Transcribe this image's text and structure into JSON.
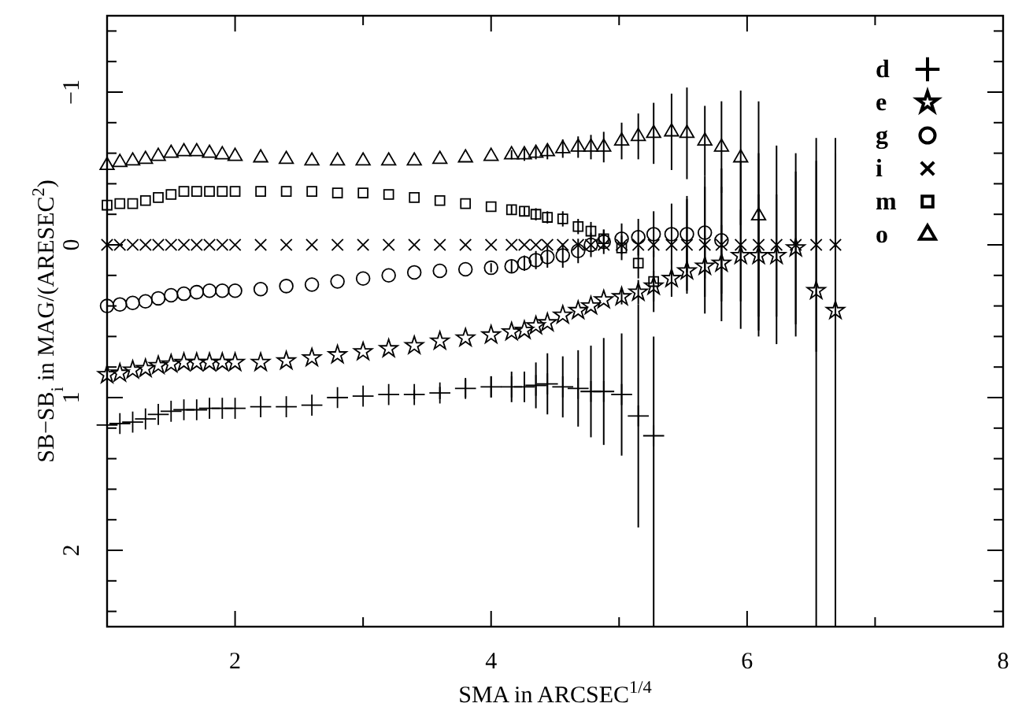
{
  "chart_data": {
    "type": "scatter",
    "xlabel": "SMA in ARCSEC$^{1/4}$",
    "ylabel": "SB−SB$_{i}$ in MAG/(ARESEC$^{2}$)",
    "xlim": [
      1,
      8
    ],
    "ylim": [
      2.5,
      -1.5
    ],
    "xticks": [
      2,
      {
        "value": 3,
        "label": null
      },
      4,
      {
        "value": 5,
        "label": null
      },
      6,
      {
        "value": 7,
        "label": null
      },
      8
    ],
    "yticks": [
      {
        "value": -1.4,
        "label": null
      },
      {
        "value": -1.2,
        "label": null
      },
      {
        "value": -1,
        "label": "−1"
      },
      {
        "value": -0.8,
        "label": null
      },
      {
        "value": -0.6,
        "label": null
      },
      {
        "value": -0.4,
        "label": null
      },
      {
        "value": -0.2,
        "label": null
      },
      0,
      {
        "value": 0.2,
        "label": null
      },
      {
        "value": 0.4,
        "label": null
      },
      {
        "value": 0.6,
        "label": null
      },
      {
        "value": 0.8,
        "label": null
      },
      1,
      {
        "value": 1.2,
        "label": null
      },
      {
        "value": 1.4,
        "label": null
      },
      {
        "value": 1.6,
        "label": null
      },
      {
        "value": 1.8,
        "label": null
      },
      2,
      {
        "value": 2.2,
        "label": null
      },
      {
        "value": 2.4,
        "label": null
      }
    ],
    "grid": false,
    "legend": "top right",
    "series": [
      {
        "name": "d",
        "color": "#000000",
        "marker": "plus",
        "x": [
          1.0,
          1.1,
          1.2,
          1.3,
          1.4,
          1.5,
          1.6,
          1.7,
          1.8,
          1.9,
          2.0,
          2.2,
          2.4,
          2.6,
          2.8,
          3.0,
          3.2,
          3.4,
          3.6,
          3.8,
          4.0,
          4.16,
          4.26,
          4.35,
          4.44,
          4.56,
          4.68,
          4.78,
          4.88,
          5.02,
          5.15,
          5.27
        ],
        "values": [
          1.18,
          1.17,
          1.16,
          1.14,
          1.11,
          1.09,
          1.08,
          1.08,
          1.07,
          1.07,
          1.07,
          1.06,
          1.06,
          1.05,
          1.0,
          0.99,
          0.98,
          0.98,
          0.97,
          0.94,
          0.93,
          0.93,
          0.93,
          0.92,
          0.91,
          0.93,
          0.94,
          0.96,
          0.96,
          0.98,
          1.12,
          1.25
        ],
        "errors": [
          null,
          null,
          null,
          null,
          null,
          null,
          null,
          null,
          null,
          null,
          null,
          null,
          null,
          null,
          null,
          null,
          null,
          0.03,
          0.04,
          0.06,
          0.07,
          0.1,
          0.1,
          0.15,
          0.2,
          0.2,
          0.25,
          0.3,
          0.35,
          0.4,
          0.73,
          [
            0.6,
            2.5
          ]
        ]
      },
      {
        "name": "e",
        "color": "#000000",
        "marker": "star",
        "x": [
          1.0,
          1.1,
          1.2,
          1.3,
          1.4,
          1.5,
          1.6,
          1.7,
          1.8,
          1.9,
          2.0,
          2.2,
          2.4,
          2.6,
          2.8,
          3.0,
          3.2,
          3.4,
          3.6,
          3.8,
          4.0,
          4.16,
          4.26,
          4.35,
          4.44,
          4.56,
          4.68,
          4.78,
          4.88,
          5.02,
          5.15,
          5.27,
          5.41,
          5.53,
          5.67,
          5.8,
          5.95,
          6.09,
          6.23,
          6.38,
          6.54,
          6.69
        ],
        "values": [
          0.85,
          0.84,
          0.82,
          0.81,
          0.79,
          0.78,
          0.77,
          0.77,
          0.77,
          0.77,
          0.77,
          0.77,
          0.76,
          0.74,
          0.72,
          0.7,
          0.68,
          0.66,
          0.63,
          0.61,
          0.59,
          0.57,
          0.56,
          0.53,
          0.51,
          0.46,
          0.43,
          0.4,
          0.36,
          0.34,
          0.31,
          0.27,
          0.22,
          0.17,
          0.14,
          0.12,
          0.07,
          0.07,
          0.07,
          0.02,
          0.3,
          0.43
        ],
        "errors": [
          null,
          null,
          null,
          null,
          null,
          null,
          null,
          null,
          null,
          null,
          null,
          null,
          null,
          null,
          null,
          null,
          null,
          null,
          null,
          null,
          null,
          null,
          null,
          null,
          null,
          null,
          null,
          null,
          null,
          0.05,
          0.08,
          0.1,
          0.12,
          0.15,
          0.2,
          0.25,
          0.3,
          0.4,
          0.4,
          0.5,
          [
            -0.55,
            2.5
          ],
          [
            -0.6,
            2.5
          ]
        ]
      },
      {
        "name": "g",
        "color": "#000000",
        "marker": "circle",
        "x": [
          1.0,
          1.1,
          1.2,
          1.3,
          1.4,
          1.5,
          1.6,
          1.7,
          1.8,
          1.9,
          2.0,
          2.2,
          2.4,
          2.6,
          2.8,
          3.0,
          3.2,
          3.4,
          3.6,
          3.8,
          4.0,
          4.16,
          4.26,
          4.35,
          4.44,
          4.56,
          4.68,
          4.78,
          4.88,
          5.02,
          5.15,
          5.27,
          5.41,
          5.53,
          5.67,
          5.8
        ],
        "values": [
          0.4,
          0.39,
          0.38,
          0.37,
          0.35,
          0.33,
          0.32,
          0.31,
          0.3,
          0.3,
          0.3,
          0.29,
          0.27,
          0.26,
          0.24,
          0.22,
          0.2,
          0.18,
          0.17,
          0.16,
          0.15,
          0.14,
          0.12,
          0.1,
          0.08,
          0.07,
          0.04,
          0.0,
          -0.02,
          -0.04,
          -0.05,
          -0.07,
          -0.07,
          -0.07,
          -0.08,
          -0.03
        ],
        "errors": [
          null,
          null,
          null,
          null,
          null,
          null,
          null,
          null,
          null,
          null,
          null,
          null,
          null,
          null,
          null,
          null,
          null,
          null,
          null,
          null,
          0.03,
          0.04,
          0.05,
          0.06,
          0.07,
          0.08,
          0.08,
          0.08,
          0.08,
          0.1,
          0.12,
          0.15,
          0.2,
          0.25,
          0.3,
          0.35
        ]
      },
      {
        "name": "i",
        "color": "#000000",
        "marker": "cross",
        "x": [
          1.0,
          1.1,
          1.2,
          1.3,
          1.4,
          1.5,
          1.6,
          1.7,
          1.8,
          1.9,
          2.0,
          2.2,
          2.4,
          2.6,
          2.8,
          3.0,
          3.2,
          3.4,
          3.6,
          3.8,
          4.0,
          4.16,
          4.26,
          4.35,
          4.44,
          4.56,
          4.68,
          4.78,
          4.88,
          5.02,
          5.15,
          5.27,
          5.41,
          5.53,
          5.67,
          5.8,
          5.95,
          6.09,
          6.23,
          6.38,
          6.54,
          6.69
        ],
        "values": [
          0,
          0,
          0,
          0,
          0,
          0,
          0,
          0,
          0,
          0,
          0,
          0,
          0,
          0,
          0,
          0,
          0,
          0,
          0,
          0,
          0,
          0,
          0,
          0,
          0,
          0,
          0,
          0,
          0,
          0,
          0,
          0,
          0,
          0,
          0,
          0,
          0,
          0,
          0,
          0,
          0,
          0
        ],
        "errors": [
          null,
          null,
          null,
          null,
          null,
          null,
          null,
          null,
          null,
          null,
          null,
          null,
          null,
          null,
          null,
          null,
          null,
          null,
          null,
          null,
          null,
          null,
          null,
          null,
          null,
          null,
          null,
          null,
          null,
          null,
          null,
          null,
          null,
          0.3,
          0.45,
          0.5,
          0.55,
          0.6,
          0.65,
          0.6,
          0.7,
          0.7
        ]
      },
      {
        "name": "m",
        "color": "#000000",
        "marker": "square",
        "x": [
          1.0,
          1.1,
          1.2,
          1.3,
          1.4,
          1.5,
          1.6,
          1.7,
          1.8,
          1.9,
          2.0,
          2.2,
          2.4,
          2.6,
          2.8,
          3.0,
          3.2,
          3.4,
          3.6,
          3.8,
          4.0,
          4.16,
          4.26,
          4.35,
          4.44,
          4.56,
          4.68,
          4.78,
          4.88,
          5.02,
          5.15,
          5.27
        ],
        "values": [
          -0.26,
          -0.27,
          -0.27,
          -0.29,
          -0.31,
          -0.33,
          -0.35,
          -0.35,
          -0.35,
          -0.35,
          -0.35,
          -0.35,
          -0.35,
          -0.35,
          -0.34,
          -0.34,
          -0.33,
          -0.31,
          -0.29,
          -0.27,
          -0.25,
          -0.23,
          -0.22,
          -0.2,
          -0.18,
          -0.17,
          -0.12,
          -0.09,
          -0.04,
          0.02,
          0.12,
          0.24
        ],
        "errors": [
          null,
          null,
          null,
          null,
          null,
          null,
          null,
          null,
          null,
          null,
          null,
          null,
          null,
          null,
          null,
          null,
          null,
          null,
          null,
          null,
          null,
          0.03,
          0.03,
          0.04,
          0.04,
          0.05,
          0.05,
          0.06,
          0.06,
          0.08,
          0.1,
          0.2
        ]
      },
      {
        "name": "o",
        "color": "#000000",
        "marker": "triangle",
        "x": [
          1.0,
          1.1,
          1.2,
          1.3,
          1.4,
          1.5,
          1.6,
          1.7,
          1.8,
          1.9,
          2.0,
          2.2,
          2.4,
          2.6,
          2.8,
          3.0,
          3.2,
          3.4,
          3.6,
          3.8,
          4.0,
          4.16,
          4.26,
          4.35,
          4.44,
          4.56,
          4.68,
          4.78,
          4.88,
          5.02,
          5.15,
          5.27,
          5.41,
          5.53,
          5.67,
          5.8,
          5.95,
          6.09
        ],
        "values": [
          -0.52,
          -0.54,
          -0.55,
          -0.56,
          -0.58,
          -0.6,
          -0.61,
          -0.61,
          -0.6,
          -0.59,
          -0.58,
          -0.57,
          -0.56,
          -0.55,
          -0.55,
          -0.55,
          -0.55,
          -0.55,
          -0.56,
          -0.57,
          -0.58,
          -0.59,
          -0.59,
          -0.6,
          -0.61,
          -0.63,
          -0.64,
          -0.64,
          -0.64,
          -0.68,
          -0.71,
          -0.73,
          -0.74,
          -0.73,
          -0.68,
          -0.64,
          -0.57,
          -0.19
        ],
        "errors": [
          null,
          null,
          null,
          null,
          null,
          null,
          null,
          null,
          null,
          null,
          null,
          null,
          null,
          null,
          null,
          null,
          null,
          null,
          null,
          null,
          null,
          0.03,
          0.04,
          0.04,
          0.05,
          0.06,
          0.07,
          0.08,
          0.1,
          0.12,
          0.15,
          0.2,
          0.25,
          0.3,
          0.23,
          0.3,
          0.44,
          0.75
        ]
      }
    ]
  }
}
